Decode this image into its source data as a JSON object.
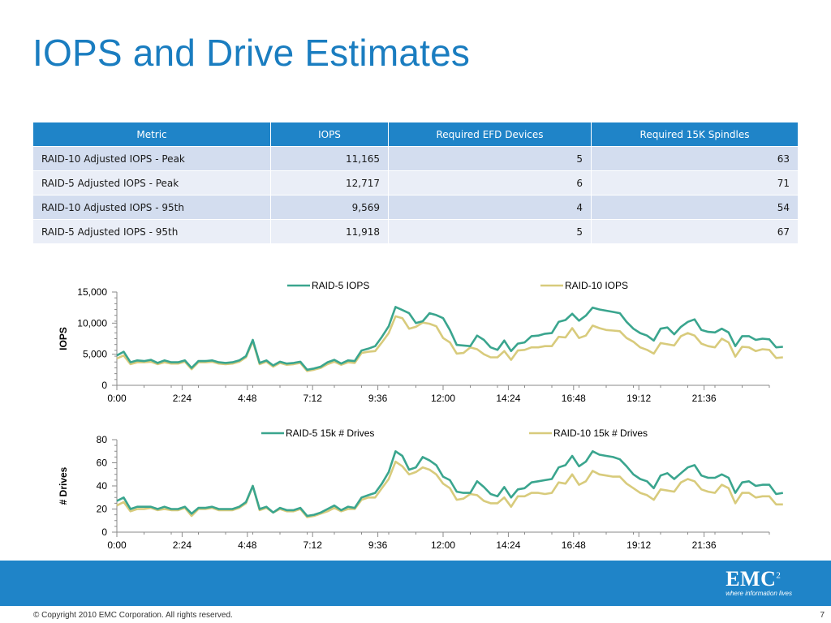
{
  "slide": {
    "title": "IOPS and Drive Estimates"
  },
  "table": {
    "headers": [
      "Metric",
      "IOPS",
      "Required EFD Devices",
      "Required 15K Spindles"
    ],
    "rows": [
      [
        "RAID-10 Adjusted IOPS - Peak",
        "11,165",
        "5",
        "63"
      ],
      [
        "RAID-5 Adjusted IOPS - Peak",
        "12,717",
        "6",
        "71"
      ],
      [
        "RAID-10 Adjusted IOPS - 95th",
        "9,569",
        "4",
        "54"
      ],
      [
        "RAID-5 Adjusted IOPS - 95th",
        "11,918",
        "5",
        "67"
      ]
    ]
  },
  "colors": {
    "accent": "#1f84c8",
    "title": "#1a7dc0",
    "raid5": "#3aa58e",
    "raid10": "#d8cb7c"
  },
  "chart_data": [
    {
      "type": "line",
      "title": "",
      "xlabel": "",
      "ylabel": "IOPS",
      "ylim": [
        0,
        15000
      ],
      "yticks": [
        "15,000",
        "10,000",
        "5,000",
        "0"
      ],
      "ytick_values": [
        15000,
        10000,
        5000,
        0
      ],
      "xticks": [
        "0:00",
        "2:24",
        "4:48",
        "7:12",
        "9:36",
        "12:00",
        "14:24",
        "16:48",
        "19:12",
        "21:36"
      ],
      "x_interval_minutes": 15,
      "legend_position": "top",
      "grid": false,
      "series": [
        {
          "name": "RAID-5 IOPS",
          "color": "#3aa58e",
          "values": [
            4800,
            5400,
            3700,
            4000,
            3900,
            4100,
            3600,
            4000,
            3700,
            3700,
            4000,
            2800,
            3900,
            3900,
            4000,
            3700,
            3600,
            3700,
            4000,
            4700,
            7300,
            3600,
            4000,
            3200,
            3800,
            3500,
            3600,
            3800,
            2500,
            2700,
            3000,
            3700,
            4100,
            3500,
            4000,
            3900,
            5600,
            5900,
            6300,
            7800,
            9500,
            12600,
            12100,
            11600,
            10000,
            10300,
            11600,
            11300,
            10800,
            8900,
            6500,
            6400,
            6300,
            8000,
            7300,
            6100,
            5700,
            7200,
            5500,
            6700,
            6900,
            7900,
            8000,
            8300,
            8400,
            10200,
            10500,
            11500,
            10400,
            11200,
            12500,
            12200,
            12000,
            11800,
            11600,
            10200,
            9100,
            8400,
            8000,
            7200,
            9100,
            9300,
            8200,
            9400,
            10200,
            10600,
            8900,
            8600,
            8500,
            9100,
            8500,
            6300,
            7900,
            7900,
            7300,
            7500,
            7400,
            6100,
            6200
          ]
        },
        {
          "name": "RAID-10 IOPS",
          "color": "#d8cb7c",
          "values": [
            4300,
            4800,
            3400,
            3700,
            3700,
            3800,
            3400,
            3700,
            3500,
            3500,
            3800,
            2600,
            3700,
            3700,
            3800,
            3500,
            3400,
            3500,
            3800,
            4500,
            7100,
            3400,
            3800,
            3000,
            3600,
            3300,
            3400,
            3600,
            2300,
            2500,
            2800,
            3400,
            3800,
            3300,
            3700,
            3600,
            5200,
            5400,
            5500,
            6900,
            8400,
            11100,
            10800,
            9100,
            9400,
            10100,
            9900,
            9500,
            7600,
            6900,
            5100,
            5200,
            6100,
            5800,
            5000,
            4500,
            4500,
            5500,
            4100,
            5600,
            5700,
            6100,
            6100,
            6300,
            6300,
            7800,
            7700,
            9200,
            7600,
            8000,
            9600,
            9200,
            8900,
            8800,
            8700,
            7600,
            7000,
            6100,
            5700,
            5100,
            6800,
            6600,
            6400,
            7900,
            8400,
            8000,
            6700,
            6300,
            6100,
            7500,
            6900,
            4600,
            6200,
            6100,
            5500,
            5800,
            5700,
            4400,
            4500
          ]
        }
      ]
    },
    {
      "type": "line",
      "title": "",
      "xlabel": "",
      "ylabel": "# Drives",
      "ylim": [
        0,
        80
      ],
      "yticks": [
        "80",
        "60",
        "40",
        "20",
        "0"
      ],
      "ytick_values": [
        80,
        60,
        40,
        20,
        0
      ],
      "xticks": [
        "0:00",
        "2:24",
        "4:48",
        "7:12",
        "9:36",
        "12:00",
        "14:24",
        "16:48",
        "19:12",
        "21:36"
      ],
      "x_interval_minutes": 15,
      "legend_position": "top",
      "grid": false,
      "series": [
        {
          "name": "RAID-5 15k # Drives",
          "color": "#3aa58e",
          "values": [
            27,
            30,
            20,
            22,
            22,
            22,
            20,
            22,
            20,
            20,
            22,
            16,
            21,
            21,
            22,
            20,
            20,
            20,
            22,
            26,
            40,
            20,
            22,
            17,
            21,
            19,
            19,
            21,
            14,
            15,
            17,
            20,
            23,
            19,
            22,
            21,
            30,
            32,
            34,
            42,
            52,
            70,
            66,
            54,
            56,
            65,
            62,
            58,
            48,
            45,
            35,
            34,
            34,
            44,
            39,
            33,
            31,
            39,
            30,
            37,
            38,
            43,
            44,
            45,
            46,
            56,
            58,
            66,
            57,
            61,
            70,
            67,
            66,
            65,
            63,
            57,
            50,
            46,
            44,
            38,
            49,
            51,
            46,
            51,
            56,
            58,
            49,
            47,
            47,
            50,
            47,
            34,
            43,
            44,
            40,
            41,
            41,
            33,
            34
          ]
        },
        {
          "name": "RAID-10 15k # Drives",
          "color": "#d8cb7c",
          "values": [
            23,
            26,
            18,
            20,
            20,
            21,
            19,
            20,
            19,
            19,
            21,
            14,
            20,
            20,
            21,
            19,
            19,
            19,
            21,
            25,
            40,
            19,
            21,
            17,
            20,
            18,
            18,
            20,
            13,
            14,
            16,
            18,
            21,
            18,
            20,
            20,
            28,
            30,
            30,
            38,
            46,
            61,
            57,
            50,
            52,
            56,
            54,
            50,
            42,
            38,
            28,
            29,
            33,
            32,
            27,
            25,
            25,
            30,
            22,
            31,
            31,
            34,
            34,
            33,
            34,
            43,
            42,
            50,
            41,
            44,
            53,
            50,
            49,
            48,
            48,
            42,
            38,
            34,
            32,
            28,
            37,
            36,
            35,
            43,
            46,
            44,
            37,
            35,
            34,
            41,
            38,
            25,
            34,
            34,
            30,
            31,
            31,
            24,
            24
          ]
        }
      ]
    }
  ],
  "footer": {
    "copyright": "© Copyright 2010  EMC Corporation.  All rights reserved.",
    "page_number": "7",
    "logo_text": "EMC",
    "logo_superscript": "2",
    "logo_tagline": "where information lives"
  }
}
